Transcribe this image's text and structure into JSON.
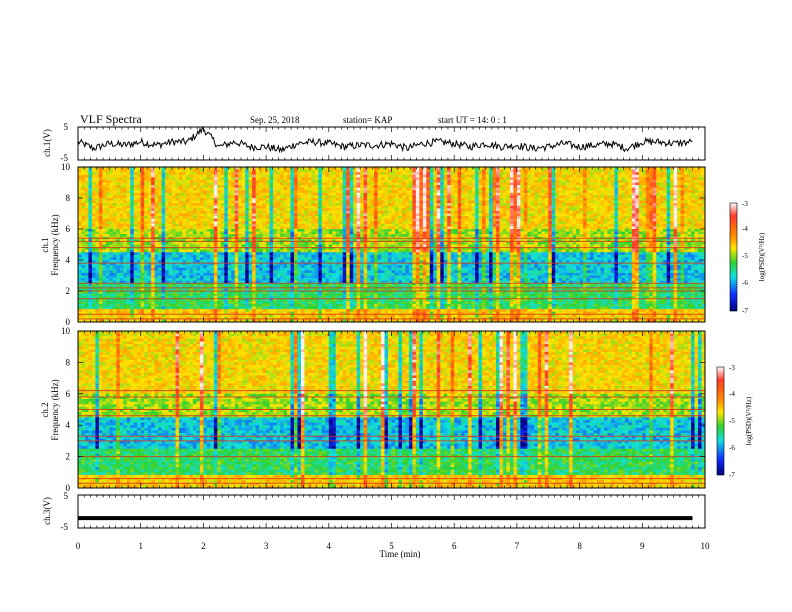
{
  "header": {
    "title": "VLF Spectra",
    "date": "Sep. 25, 2018",
    "station": "station= KAP",
    "start": "start  UT =   14: 0  : 1"
  },
  "chart_data": [
    {
      "type": "line",
      "panel": "ch1-waveform",
      "ylabel": "ch.1(V)",
      "ylim": [
        -5,
        5
      ],
      "yticks": [
        "5",
        "-5"
      ],
      "x": [
        0,
        0.25,
        0.5,
        0.75,
        1.0,
        1.25,
        1.5,
        1.75,
        2.0,
        2.25,
        2.5,
        2.75,
        3.0,
        3.25,
        3.5,
        3.75,
        4.0,
        4.25,
        4.5,
        4.75,
        5.0,
        5.25,
        5.5,
        5.75,
        6.0,
        6.25,
        6.5,
        6.75,
        7.0,
        7.25,
        7.5,
        7.75,
        8.0,
        8.25,
        8.5,
        8.75,
        9.0,
        9.25,
        9.5,
        9.8
      ],
      "values": [
        0.5,
        -1.5,
        0.0,
        -0.5,
        0.5,
        -0.5,
        0.5,
        0.5,
        4.5,
        -1.0,
        0.5,
        -1.0,
        -1.0,
        -2.0,
        0.0,
        0.5,
        0.0,
        -1.0,
        -0.5,
        -0.5,
        0.0,
        -1.5,
        0.0,
        0.5,
        0.0,
        -1.0,
        0.0,
        -1.0,
        -0.5,
        -1.5,
        -1.0,
        0.0,
        -1.0,
        -0.5,
        0.0,
        -1.5,
        0.5,
        0.5,
        0.0,
        0.5
      ]
    },
    {
      "type": "heatmap",
      "panel": "ch1-spectrogram",
      "title": "ch.1",
      "ylabel": "Frequency (kHz)",
      "ylim": [
        0,
        10
      ],
      "yticks": [
        "10",
        "8",
        "6",
        "4",
        "2",
        "0"
      ],
      "colorbar": {
        "label": "log(PSD)(V²/Hz)",
        "range": [
          -7,
          -3
        ],
        "ticks": [
          "-3",
          "-4",
          "-5",
          "-6",
          "-7"
        ]
      },
      "lines_khz": [
        0.2,
        0.5,
        1.5,
        2.0,
        2.2,
        2.5,
        3.8,
        4.8,
        5.2,
        5.4
      ]
    },
    {
      "type": "heatmap",
      "panel": "ch2-spectrogram",
      "title": "ch.2",
      "ylabel": "Frequency (kHz)",
      "ylim": [
        0,
        10
      ],
      "yticks": [
        "10",
        "8",
        "6",
        "4",
        "2",
        "0"
      ],
      "colorbar": {
        "label": "log(PSD)(V²/Hz)",
        "range": [
          -7,
          -3
        ],
        "ticks": [
          "-3",
          "-4",
          "-5",
          "-6",
          "-7"
        ]
      },
      "lines_khz": [
        0.3,
        0.6,
        2.0,
        3.0,
        3.3,
        4.6,
        5.0,
        5.8,
        6.2
      ]
    },
    {
      "type": "line",
      "panel": "ch3-waveform",
      "ylabel": "ch.3(V)",
      "ylim": [
        -5,
        5
      ],
      "yticks": [
        "5",
        "-5"
      ],
      "x": [
        0,
        9.8
      ],
      "values": [
        -2,
        -2
      ]
    }
  ],
  "xaxis": {
    "label": "Time (min)",
    "ticks": [
      "0",
      "1",
      "2",
      "3",
      "4",
      "5",
      "6",
      "7",
      "8",
      "9",
      "10"
    ],
    "xlim": [
      0,
      10
    ]
  }
}
